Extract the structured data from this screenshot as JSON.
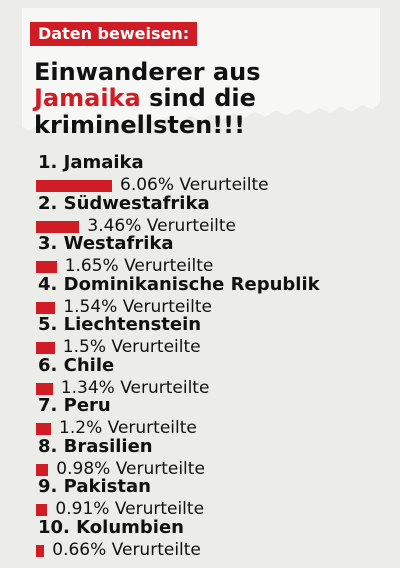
{
  "header": {
    "badge": "Daten beweisen:",
    "headline_before": "Einwanderer aus ",
    "headline_accent": "Jamaika",
    "headline_after": " sind die kriminellsten!!!"
  },
  "chart_data": {
    "type": "bar",
    "categories": [
      "1. Jamaika",
      "2. Südwestafrika",
      "3. Westafrika",
      "4. Dominikanische Republik",
      "5. Liechtenstein",
      "6. Chile",
      "7. Peru",
      "8. Brasilien",
      "9. Pakistan",
      "10. Kolumbien"
    ],
    "values": [
      6.06,
      3.46,
      1.65,
      1.54,
      1.5,
      1.34,
      1.2,
      0.98,
      0.91,
      0.66
    ],
    "value_labels": [
      "6.06% Verurteilte",
      "3.46% Verurteilte",
      "1.65% Verurteilte",
      "1.54% Verurteilte",
      "1.5% Verurteilte",
      "1.34% Verurteilte",
      "1.2% Verurteilte",
      "0.98% Verurteilte",
      "0.91% Verurteilte",
      "0.66% Verurteilte"
    ],
    "title": "",
    "xlabel": "",
    "ylabel": "",
    "bar_color": "#d01c24",
    "grid": false,
    "legend": "none"
  },
  "colors": {
    "accent": "#d01c24",
    "text": "#111111",
    "background": "#ecece8",
    "paper": "#f7f7f5"
  }
}
